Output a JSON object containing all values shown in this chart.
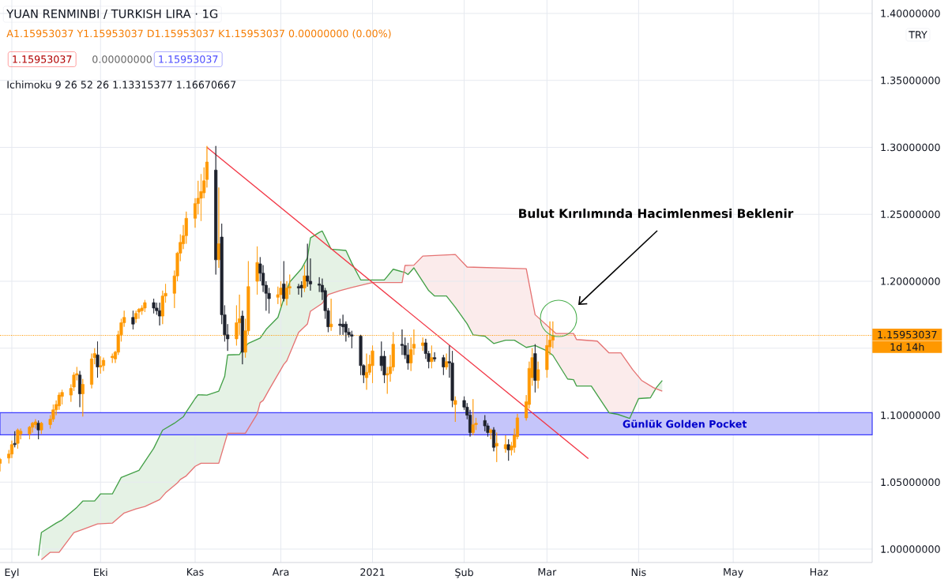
{
  "chart_data": {
    "type": "candlestick",
    "title": "YUAN RENMINBI / TURKISH LIRA · 1G",
    "annotations": [
      "A1.15953037 Y1.15953037 D1.15953037 K1.15953037 0.00000000 (0.00%)",
      "1.15953037",
      "0.00000000",
      "1.15953037",
      "Ichimoku 9 26 52 26 1.13315377 1.16670667",
      "TRY",
      "1d 14h",
      "Bulut Kırılımında Hacimlenmesi Beklenir"
    ],
    "x": [
      "2020-08-28",
      "2020-08-31",
      "2020-09-01",
      "2020-09-02",
      "2020-09-03",
      "2020-09-04",
      "2020-09-07",
      "2020-09-08",
      "2020-09-09",
      "2020-09-10",
      "2020-09-11",
      "2020-09-14",
      "2020-09-15",
      "2020-09-16",
      "2020-09-17",
      "2020-09-18",
      "2020-09-21",
      "2020-09-22",
      "2020-09-23",
      "2020-09-24",
      "2020-09-25",
      "2020-09-28",
      "2020-09-29",
      "2020-09-30",
      "2020-10-01",
      "2020-10-02",
      "2020-10-05",
      "2020-10-06",
      "2020-10-07",
      "2020-10-08",
      "2020-10-09",
      "2020-10-12",
      "2020-10-13",
      "2020-10-14",
      "2020-10-15",
      "2020-10-16",
      "2020-10-19",
      "2020-10-20",
      "2020-10-21",
      "2020-10-22",
      "2020-10-23",
      "2020-10-26",
      "2020-10-27",
      "2020-10-28",
      "2020-10-29",
      "2020-10-30",
      "2020-11-02",
      "2020-11-03",
      "2020-11-04",
      "2020-11-05",
      "2020-11-06",
      "2020-11-09",
      "2020-11-10",
      "2020-11-11",
      "2020-11-12",
      "2020-11-13",
      "2020-11-16",
      "2020-11-17",
      "2020-11-18",
      "2020-11-19",
      "2020-11-20",
      "2020-11-23",
      "2020-11-24",
      "2020-11-25",
      "2020-11-26",
      "2020-11-27",
      "2020-11-30",
      "2020-12-01",
      "2020-12-02",
      "2020-12-03",
      "2020-12-04",
      "2020-12-07",
      "2020-12-08",
      "2020-12-09",
      "2020-12-10",
      "2020-12-11",
      "2020-12-14",
      "2020-12-15",
      "2020-12-16",
      "2020-12-17",
      "2020-12-18",
      "2020-12-21",
      "2020-12-22",
      "2020-12-23",
      "2020-12-24",
      "2020-12-25",
      "2020-12-28",
      "2020-12-29",
      "2020-12-30",
      "2020-12-31",
      "2021-01-01",
      "2021-01-04",
      "2021-01-05",
      "2021-01-06",
      "2021-01-07",
      "2021-01-08",
      "2021-01-11",
      "2021-01-12",
      "2021-01-13",
      "2021-01-14",
      "2021-01-15",
      "2021-01-18",
      "2021-01-19",
      "2021-01-20",
      "2021-01-21",
      "2021-01-22",
      "2021-01-25",
      "2021-01-26",
      "2021-01-27",
      "2021-01-28",
      "2021-01-29",
      "2021-02-01",
      "2021-02-02",
      "2021-02-03",
      "2021-02-04",
      "2021-02-05",
      "2021-02-08",
      "2021-02-09",
      "2021-02-10",
      "2021-02-11",
      "2021-02-12",
      "2021-02-15",
      "2021-02-16",
      "2021-02-17",
      "2021-02-18",
      "2021-02-19",
      "2021-02-22",
      "2021-02-23",
      "2021-02-24",
      "2021-02-25",
      "2021-02-26",
      "2021-03-01",
      "2021-03-02",
      "2021-03-03"
    ],
    "ohlc": [
      [
        1.064,
        1.068,
        1.058,
        1.067
      ],
      [
        1.068,
        1.074,
        1.064,
        1.071
      ],
      [
        1.071,
        1.081,
        1.068,
        1.078
      ],
      [
        1.079,
        1.088,
        1.076,
        1.078
      ],
      [
        1.079,
        1.09,
        1.075,
        1.089
      ],
      [
        1.086,
        1.09,
        1.082,
        1.088
      ],
      [
        1.086,
        1.092,
        1.082,
        1.091
      ],
      [
        1.091,
        1.095,
        1.087,
        1.094
      ],
      [
        1.093,
        1.097,
        1.09,
        1.095
      ],
      [
        1.094,
        1.096,
        1.082,
        1.089
      ],
      [
        1.089,
        1.095,
        1.086,
        1.094
      ],
      [
        1.093,
        1.1,
        1.09,
        1.097
      ],
      [
        1.097,
        1.108,
        1.095,
        1.104
      ],
      [
        1.104,
        1.111,
        1.1,
        1.108
      ],
      [
        1.107,
        1.117,
        1.104,
        1.115
      ],
      [
        1.114,
        1.119,
        1.108,
        1.117
      ],
      [
        1.115,
        1.123,
        1.11,
        1.12
      ],
      [
        1.121,
        1.132,
        1.118,
        1.13
      ],
      [
        1.13,
        1.136,
        1.126,
        1.131
      ],
      [
        1.13,
        1.133,
        1.106,
        1.116
      ],
      [
        1.116,
        1.127,
        1.099,
        1.123
      ],
      [
        1.123,
        1.146,
        1.12,
        1.142
      ],
      [
        1.143,
        1.15,
        1.138,
        1.146
      ],
      [
        1.145,
        1.155,
        1.128,
        1.136
      ],
      [
        1.136,
        1.144,
        1.131,
        1.137
      ],
      [
        1.137,
        1.143,
        1.133,
        1.141
      ],
      [
        1.143,
        1.146,
        1.139,
        1.144
      ],
      [
        1.142,
        1.148,
        1.139,
        1.147
      ],
      [
        1.147,
        1.163,
        1.145,
        1.16
      ],
      [
        1.16,
        1.172,
        1.155,
        1.169
      ],
      [
        1.169,
        1.178,
        1.166,
        1.173
      ],
      [
        1.173,
        1.178,
        1.164,
        1.168
      ],
      [
        1.172,
        1.178,
        1.169,
        1.176
      ],
      [
        1.177,
        1.18,
        1.172,
        1.179
      ],
      [
        1.178,
        1.182,
        1.175,
        1.18
      ],
      [
        1.18,
        1.186,
        1.177,
        1.184
      ],
      [
        1.184,
        1.187,
        1.176,
        1.18
      ],
      [
        1.18,
        1.184,
        1.175,
        1.178
      ],
      [
        1.178,
        1.184,
        1.167,
        1.174
      ],
      [
        1.174,
        1.193,
        1.168,
        1.189
      ],
      [
        1.189,
        1.198,
        1.184,
        1.191
      ],
      [
        1.191,
        1.208,
        1.18,
        1.204
      ],
      [
        1.204,
        1.222,
        1.2,
        1.221
      ],
      [
        1.221,
        1.235,
        1.215,
        1.229
      ],
      [
        1.228,
        1.242,
        1.224,
        1.234
      ],
      [
        1.234,
        1.252,
        1.228,
        1.247
      ],
      [
        1.247,
        1.262,
        1.24,
        1.258
      ],
      [
        1.258,
        1.275,
        1.25,
        1.262
      ],
      [
        1.262,
        1.28,
        1.245,
        1.267
      ],
      [
        1.266,
        1.285,
        1.262,
        1.275
      ],
      [
        1.276,
        1.301,
        1.27,
        1.289
      ],
      [
        1.283,
        1.301,
        1.205,
        1.216
      ],
      [
        1.216,
        1.27,
        1.21,
        1.228
      ],
      [
        1.233,
        1.243,
        1.168,
        1.175
      ],
      [
        1.175,
        1.182,
        1.155,
        1.16
      ],
      [
        1.16,
        1.168,
        1.148,
        1.157
      ],
      [
        1.157,
        1.182,
        1.152,
        1.169
      ],
      [
        1.169,
        1.19,
        1.16,
        1.172
      ],
      [
        1.174,
        1.178,
        1.138,
        1.147
      ],
      [
        1.147,
        1.172,
        1.143,
        1.163
      ],
      [
        1.163,
        1.215,
        1.16,
        1.196
      ],
      [
        1.2,
        1.226,
        1.19,
        1.214
      ],
      [
        1.213,
        1.218,
        1.2,
        1.206
      ],
      [
        1.206,
        1.212,
        1.192,
        1.197
      ],
      [
        1.197,
        1.2,
        1.178,
        1.191
      ],
      [
        1.191,
        1.195,
        1.176,
        1.187
      ],
      [
        1.188,
        1.196,
        1.183,
        1.19
      ],
      [
        1.19,
        1.2,
        1.181,
        1.195
      ],
      [
        1.198,
        1.215,
        1.185,
        1.187
      ],
      [
        1.187,
        1.2,
        1.182,
        1.195
      ],
      [
        1.195,
        1.205,
        1.19,
        1.196
      ],
      [
        1.196,
        1.198,
        1.19,
        1.195
      ],
      [
        1.197,
        1.2,
        1.188,
        1.195
      ],
      [
        1.195,
        1.212,
        1.192,
        1.204
      ],
      [
        1.204,
        1.228,
        1.196,
        1.2
      ],
      [
        1.2,
        1.217,
        1.193,
        1.198
      ],
      [
        1.198,
        1.203,
        1.192,
        1.197
      ],
      [
        1.197,
        1.202,
        1.186,
        1.192
      ],
      [
        1.193,
        1.195,
        1.172,
        1.178
      ],
      [
        1.178,
        1.18,
        1.162,
        1.166
      ],
      [
        1.166,
        1.187,
        1.163,
        1.168
      ],
      [
        1.168,
        1.172,
        1.16,
        1.167
      ],
      [
        1.168,
        1.175,
        1.16,
        1.166
      ],
      [
        1.168,
        1.17,
        1.155,
        1.162
      ],
      [
        1.162,
        1.165,
        1.158,
        1.16
      ],
      [
        1.16,
        1.163,
        1.15,
        1.159
      ],
      [
        1.159,
        1.16,
        1.13,
        1.137
      ],
      [
        1.137,
        1.138,
        1.124,
        1.13
      ],
      [
        1.128,
        1.146,
        1.119,
        1.132
      ],
      [
        1.132,
        1.145,
        1.13,
        1.138
      ],
      [
        1.137,
        1.152,
        1.124,
        1.148
      ],
      [
        1.144,
        1.155,
        1.133,
        1.137
      ],
      [
        1.144,
        1.148,
        1.124,
        1.13
      ],
      [
        1.13,
        1.136,
        1.116,
        1.131
      ],
      [
        1.131,
        1.145,
        1.125,
        1.136
      ],
      [
        1.136,
        1.162,
        1.133,
        1.153
      ],
      [
        1.153,
        1.164,
        1.145,
        1.152
      ],
      [
        1.152,
        1.158,
        1.142,
        1.145
      ],
      [
        1.145,
        1.154,
        1.134,
        1.139
      ],
      [
        1.139,
        1.158,
        1.133,
        1.149
      ],
      [
        1.15,
        1.164,
        1.145,
        1.153
      ],
      [
        1.152,
        1.158,
        1.148,
        1.154
      ],
      [
        1.154,
        1.157,
        1.142,
        1.146
      ],
      [
        1.146,
        1.148,
        1.135,
        1.14
      ],
      [
        1.14,
        1.152,
        1.135,
        1.143
      ],
      [
        1.143,
        1.147,
        1.14,
        1.142
      ],
      [
        1.143,
        1.145,
        1.13,
        1.136
      ],
      [
        1.136,
        1.146,
        1.134,
        1.14
      ],
      [
        1.14,
        1.152,
        1.128,
        1.139
      ],
      [
        1.139,
        1.148,
        1.106,
        1.111
      ],
      [
        1.108,
        1.114,
        1.095,
        1.111
      ],
      [
        1.111,
        1.114,
        1.104,
        1.106
      ],
      [
        1.106,
        1.109,
        1.097,
        1.1
      ],
      [
        1.1,
        1.104,
        1.084,
        1.087
      ],
      [
        1.087,
        1.112,
        1.085,
        1.093
      ],
      [
        1.093,
        1.098,
        1.089,
        1.094
      ],
      [
        1.096,
        1.1,
        1.088,
        1.092
      ],
      [
        1.092,
        1.094,
        1.084,
        1.087
      ],
      [
        1.087,
        1.09,
        1.082,
        1.089
      ],
      [
        1.089,
        1.091,
        1.073,
        1.076
      ],
      [
        1.077,
        1.087,
        1.065,
        1.079
      ],
      [
        1.075,
        1.085,
        1.072,
        1.078
      ],
      [
        1.078,
        1.082,
        1.066,
        1.074
      ],
      [
        1.074,
        1.08,
        1.07,
        1.077
      ],
      [
        1.076,
        1.09,
        1.072,
        1.085
      ],
      [
        1.084,
        1.101,
        1.082,
        1.098
      ],
      [
        1.098,
        1.115,
        1.096,
        1.11
      ],
      [
        1.108,
        1.14,
        1.105,
        1.135
      ],
      [
        1.128,
        1.15,
        1.122,
        1.143
      ],
      [
        1.146,
        1.153,
        1.117,
        1.126
      ],
      [
        1.126,
        1.14,
        1.12,
        1.134
      ],
      [
        1.134,
        1.16,
        1.128,
        1.152
      ],
      [
        1.151,
        1.17,
        1.145,
        1.156
      ],
      [
        1.156,
        1.17,
        1.15,
        1.15953037
      ]
    ],
    "colors": [
      "#ff9800",
      "#ff9800",
      "#ff9800",
      "#1e222d",
      "#ff9800",
      "#ff9800",
      "#ff9800",
      "#ff9800",
      "#ff9800",
      "#1e222d",
      "#ff9800",
      "#ff9800",
      "#ff9800",
      "#ff9800",
      "#ff9800",
      "#ff9800",
      "#ff9800",
      "#ff9800",
      "#ff9800",
      "#1e222d",
      "#ff9800",
      "#ff9800",
      "#ff9800",
      "#1e222d",
      "#ff9800",
      "#ff9800",
      "#ff9800",
      "#ff9800",
      "#ff9800",
      "#ff9800",
      "#ff9800",
      "#1e222d",
      "#ff9800",
      "#ff9800",
      "#ff9800",
      "#ff9800",
      "#1e222d",
      "#1e222d",
      "#1e222d",
      "#ff9800",
      "#ff9800",
      "#ff9800",
      "#ff9800",
      "#ff9800",
      "#ff9800",
      "#ff9800",
      "#ff9800",
      "#ff9800",
      "#ff9800",
      "#ff9800",
      "#ff9800",
      "#1e222d",
      "#ff9800",
      "#1e222d",
      "#1e222d",
      "#1e222d",
      "#ff9800",
      "#ff9800",
      "#1e222d",
      "#ff9800",
      "#ff9800",
      "#ff9800",
      "#1e222d",
      "#1e222d",
      "#1e222d",
      "#1e222d",
      "#ff9800",
      "#ff9800",
      "#1e222d",
      "#ff9800",
      "#ff9800",
      "#1e222d",
      "#1e222d",
      "#ff9800",
      "#1e222d",
      "#1e222d",
      "#1e222d",
      "#1e222d",
      "#1e222d",
      "#1e222d",
      "#ff9800",
      "#1e222d",
      "#1e222d",
      "#1e222d",
      "#1e222d",
      "#1e222d",
      "#1e222d",
      "#1e222d",
      "#ff9800",
      "#ff9800",
      "#ff9800",
      "#1e222d",
      "#1e222d",
      "#ff9800",
      "#ff9800",
      "#ff9800",
      "#1e222d",
      "#1e222d",
      "#1e222d",
      "#ff9800",
      "#ff9800",
      "#ff9800",
      "#1e222d",
      "#1e222d",
      "#ff9800",
      "#1e222d",
      "#1e222d",
      "#ff9800",
      "#1e222d",
      "#1e222d",
      "#ff9800",
      "#1e222d",
      "#1e222d",
      "#1e222d",
      "#ff9800",
      "#ff9800",
      "#1e222d",
      "#1e222d",
      "#ff9800",
      "#1e222d",
      "#ff9800",
      "#ff9800",
      "#1e222d",
      "#ff9800",
      "#ff9800",
      "#ff9800",
      "#ff9800",
      "#ff9800",
      "#ff9800",
      "#1e222d",
      "#ff9800",
      "#ff9800",
      "#ff9800",
      "#ff9800"
    ],
    "series": [
      {
        "type": "line",
        "color": "#43a047",
        "x": [
          "2020-09-10",
          "2020-09-11",
          "2020-09-16",
          "2020-09-18",
          "2020-09-23",
          "2020-09-25",
          "2020-09-29",
          "2020-10-01",
          "2020-10-05",
          "2020-10-08",
          "2020-10-14",
          "2020-10-19",
          "2020-10-22",
          "2020-10-26",
          "2020-10-29",
          "2020-10-30",
          "2020-11-02",
          "2020-11-03",
          "2020-11-06",
          "2020-11-10",
          "2020-11-12",
          "2020-11-13",
          "2020-11-17",
          "2020-11-18",
          "2020-11-20",
          "2020-11-24",
          "2020-11-26",
          "2020-11-30",
          "2020-12-02",
          "2020-12-04",
          "2020-12-08",
          "2020-12-10",
          "2020-12-11",
          "2020-12-14",
          "2020-12-15",
          "2020-12-18",
          "2020-12-23",
          "2020-12-25",
          "2020-12-28",
          "2021-01-01",
          "2021-01-05",
          "2021-01-08",
          "2021-01-12",
          "2021-01-13",
          "2021-01-15",
          "2021-01-20",
          "2021-01-22",
          "2021-01-26",
          "2021-01-29",
          "2021-02-02",
          "2021-02-04",
          "2021-02-08",
          "2021-02-11",
          "2021-02-15",
          "2021-02-18",
          "2021-02-22",
          "2021-02-25",
          "2021-03-01",
          "2021-03-03",
          "2021-03-08",
          "2021-03-10",
          "2021-03-11",
          "2021-03-16",
          "2021-03-22",
          "2021-03-25",
          "2021-03-29",
          "2021-04-01",
          "2021-04-05",
          "2021-04-07",
          "2021-04-09"
        ],
        "values": [
          0.995,
          1.0124,
          1.0194,
          1.0218,
          1.0312,
          1.0359,
          1.0359,
          1.0412,
          1.0412,
          1.0535,
          1.0588,
          1.0753,
          1.0888,
          1.094,
          1.0988,
          1.1024,
          1.1124,
          1.1153,
          1.115,
          1.118,
          1.129,
          1.145,
          1.1453,
          1.149,
          1.1536,
          1.1576,
          1.164,
          1.173,
          1.187,
          1.1994,
          1.2094,
          1.2176,
          1.2324,
          1.2365,
          1.2375,
          1.224,
          1.223,
          1.2135,
          1.201,
          1.201,
          1.201,
          1.209,
          1.2065,
          1.205,
          1.21,
          1.193,
          1.189,
          1.189,
          1.1806,
          1.1682,
          1.16,
          1.159,
          1.1535,
          1.156,
          1.156,
          1.1506,
          1.152,
          1.148,
          1.1447,
          1.127,
          1.1265,
          1.1218,
          1.1218,
          1.1018,
          1.1006,
          1.0976,
          1.1124,
          1.113,
          1.1206,
          1.1259
        ]
      },
      {
        "type": "line",
        "color": "#e57373",
        "x": [
          "2020-09-11",
          "2020-09-14",
          "2020-09-17",
          "2020-09-22",
          "2020-09-25",
          "2020-09-30",
          "2020-10-05",
          "2020-10-09",
          "2020-10-13",
          "2020-10-16",
          "2020-10-21",
          "2020-10-23",
          "2020-10-27",
          "2020-10-28",
          "2020-10-30",
          "2020-11-02",
          "2020-11-04",
          "2020-11-10",
          "2020-11-13",
          "2020-11-19",
          "2020-11-23",
          "2020-11-24",
          "2020-11-25",
          "2020-11-27",
          "2020-12-02",
          "2020-12-03",
          "2020-12-07",
          "2020-12-10",
          "2020-12-11",
          "2020-12-15",
          "2020-12-17",
          "2020-12-21",
          "2020-12-25",
          "2020-12-30",
          "2021-01-01",
          "2021-01-11",
          "2021-01-12",
          "2021-01-15",
          "2021-01-18",
          "2021-01-29",
          "2021-02-02",
          "2021-02-22",
          "2021-02-25",
          "2021-03-04",
          "2021-03-10",
          "2021-03-11",
          "2021-03-18",
          "2021-03-22",
          "2021-03-26",
          "2021-03-30",
          "2021-04-02",
          "2021-04-06",
          "2021-04-09"
        ],
        "values": [
          0.992,
          0.9976,
          0.9976,
          1.0124,
          1.0147,
          1.0188,
          1.0194,
          1.027,
          1.03,
          1.0318,
          1.037,
          1.042,
          1.0494,
          1.052,
          1.0547,
          1.0618,
          1.0641,
          1.0641,
          1.0865,
          1.0865,
          1.101,
          1.1094,
          1.111,
          1.119,
          1.138,
          1.1406,
          1.1618,
          1.1682,
          1.1776,
          1.1835,
          1.19,
          1.193,
          1.1953,
          1.198,
          1.199,
          1.199,
          1.2118,
          1.212,
          1.2188,
          1.22,
          1.2106,
          1.2094,
          1.175,
          1.161,
          1.161,
          1.1565,
          1.1553,
          1.1465,
          1.1465,
          1.134,
          1.126,
          1.1206,
          1.118
        ]
      },
      {
        "type": "line",
        "color": "#f23645",
        "x": [
          "2020-11-06",
          "2021-03-15"
        ],
        "values": [
          1.3,
          1.0676
        ]
      }
    ],
    "bands": [
      {
        "axis": "y",
        "from": 1.0853,
        "to": 1.1018,
        "label": "Günlük Golden Pocket",
        "color": "#c5c5fa"
      }
    ],
    "ref_lines": [
      {
        "axis": "y",
        "value": 1.15953037,
        "label": "1.15953037",
        "color": "#ff9800",
        "line_style": "dotted"
      }
    ],
    "xlim": [
      "2020-08-28",
      "2021-06-19"
    ],
    "xticks": [
      {
        "value": "2020-09-01",
        "label": "Eyl"
      },
      {
        "value": "2020-10-01",
        "label": "Eki"
      },
      {
        "value": "2020-11-02",
        "label": "Kas"
      },
      {
        "value": "2020-12-01",
        "label": "Ara"
      },
      {
        "value": "2021-01-01",
        "label": "2021"
      },
      {
        "value": "2021-02-01",
        "label": "Şub"
      },
      {
        "value": "2021-03-01",
        "label": "Mar"
      },
      {
        "value": "2021-04-01",
        "label": "Nis"
      },
      {
        "value": "2021-05-03",
        "label": "May"
      },
      {
        "value": "2021-06-01",
        "label": "Haz"
      }
    ],
    "ylim": [
      0.99,
      1.41
    ],
    "yticks": [
      {
        "value": 1.0,
        "label": "1.00000000"
      },
      {
        "value": 1.05,
        "label": "1.05000000"
      },
      {
        "value": 1.1,
        "label": "1.10000000"
      },
      {
        "value": 1.15,
        "label": null
      },
      {
        "value": 1.2,
        "label": "1.20000000"
      },
      {
        "value": 1.25,
        "label": "1.25000000"
      },
      {
        "value": 1.3,
        "label": "1.30000000"
      },
      {
        "value": 1.35,
        "label": "1.35000000"
      },
      {
        "value": 1.4,
        "label": "1.40000000"
      }
    ],
    "grid": true,
    "marker": "none"
  }
}
